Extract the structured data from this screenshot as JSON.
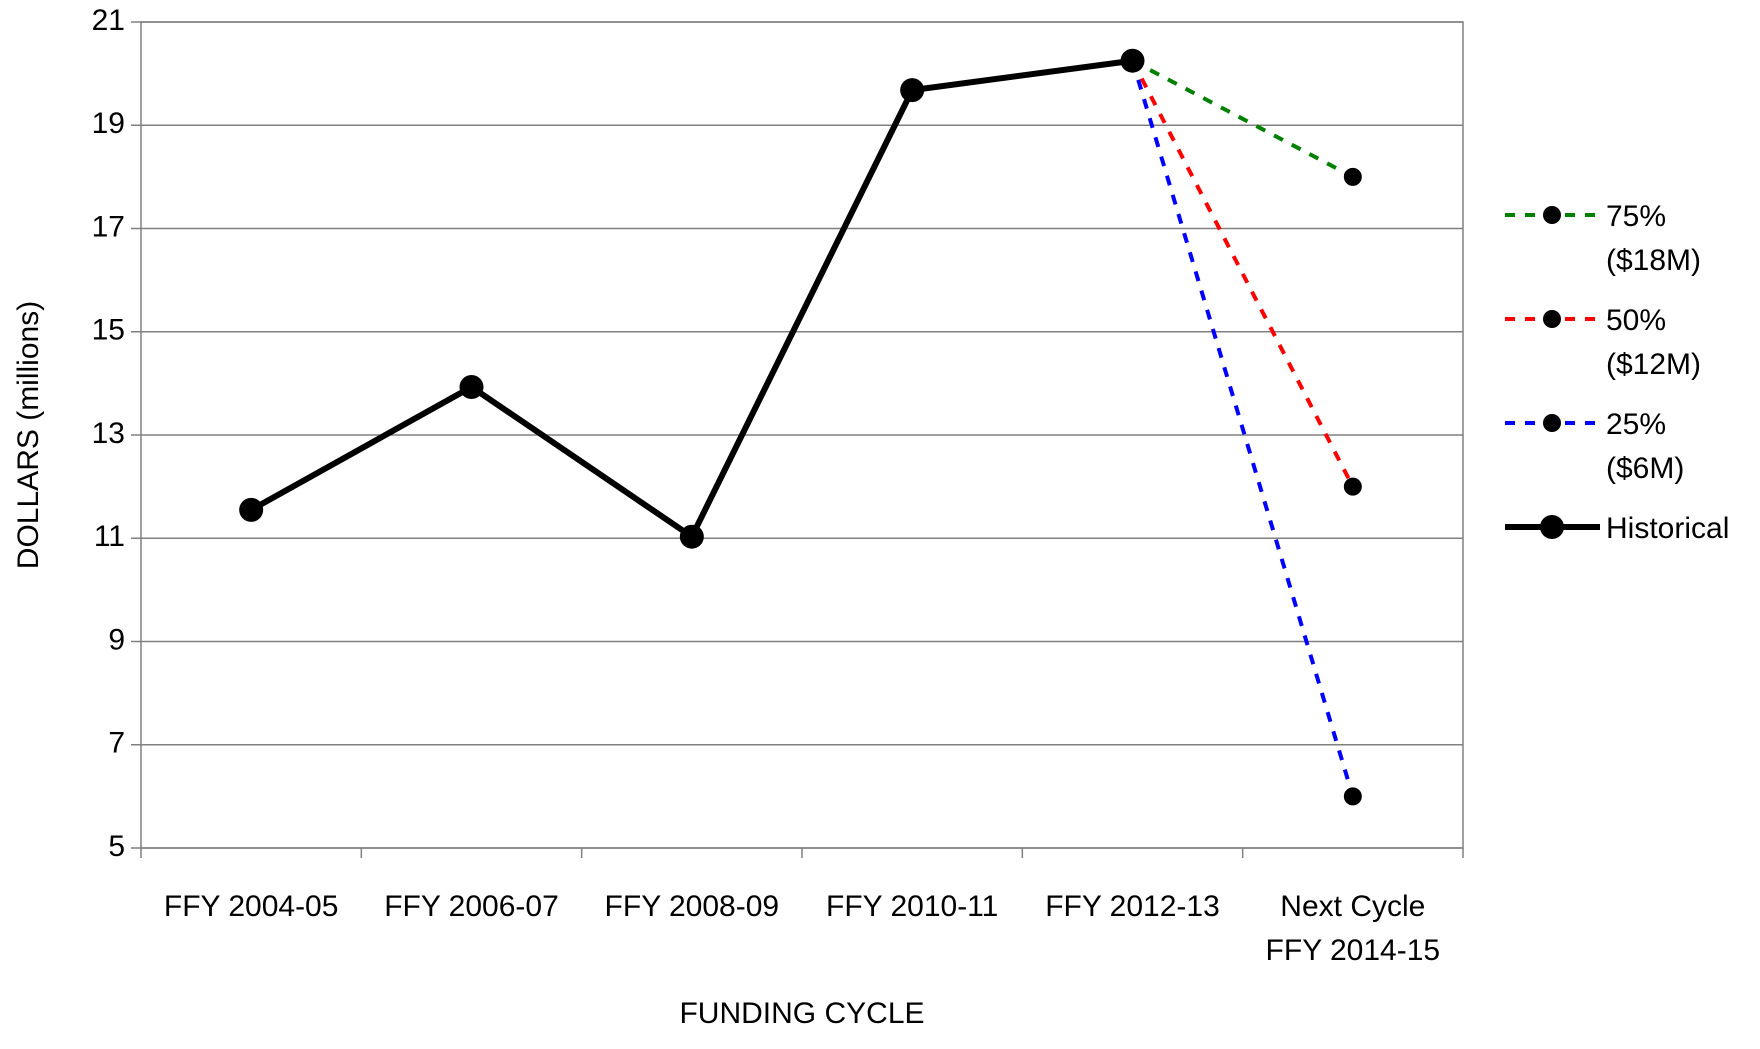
{
  "chart_data": {
    "type": "line",
    "x_label": "FUNDING CYCLE",
    "y_label": "DOLLARS (millions)",
    "categories": [
      "FFY 2004-05",
      "FFY 2006-07",
      "FFY 2008-09",
      "FFY 2010-11",
      "FFY 2012-13",
      "Next Cycle\nFFY 2014-15"
    ],
    "ylim": [
      5,
      21
    ],
    "yticks": [
      5,
      7,
      9,
      11,
      13,
      15,
      17,
      19,
      21
    ],
    "grid": true,
    "series": [
      {
        "name": "75% ($18M)",
        "color": "#008000",
        "dashed": true,
        "values": [
          null,
          null,
          null,
          null,
          20.25,
          18
        ]
      },
      {
        "name": "50% ($12M)",
        "color": "#ff0000",
        "dashed": true,
        "values": [
          null,
          null,
          null,
          null,
          20.25,
          12
        ]
      },
      {
        "name": "25% ($6M)",
        "color": "#0000ff",
        "dashed": true,
        "values": [
          null,
          null,
          null,
          null,
          20.25,
          6
        ]
      },
      {
        "name": "Historical",
        "color": "#000000",
        "dashed": false,
        "values": [
          11.55,
          13.93,
          11.03,
          19.68,
          20.25,
          null
        ]
      }
    ]
  }
}
